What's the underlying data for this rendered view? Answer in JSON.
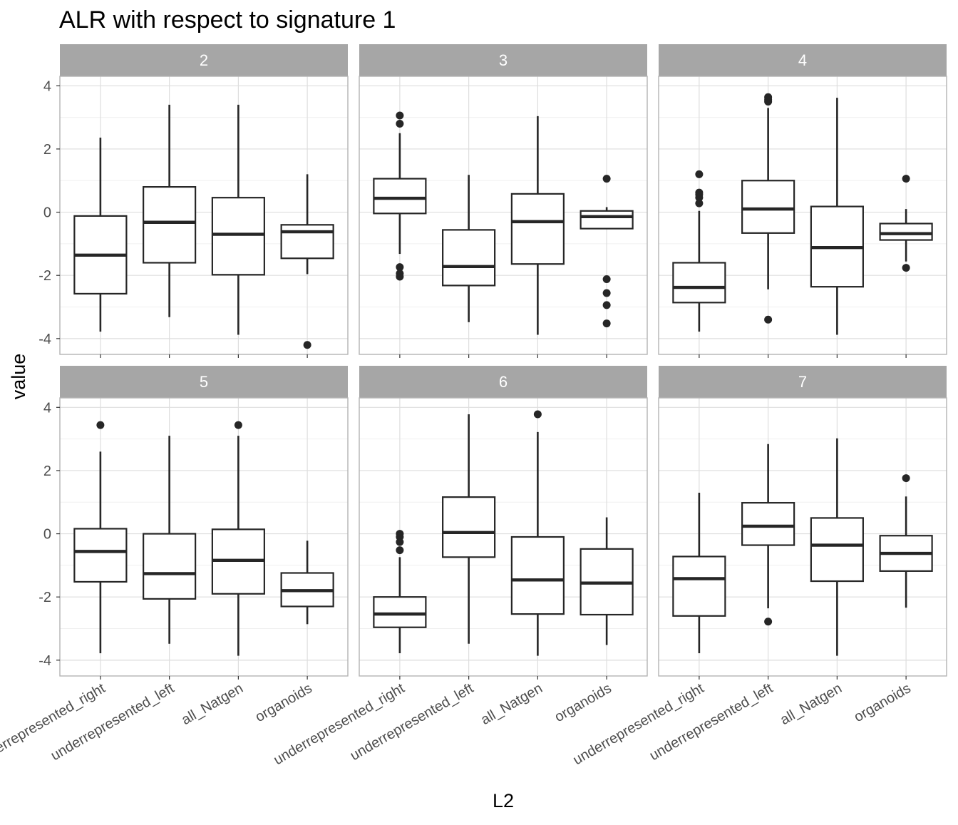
{
  "chart_data": {
    "type": "boxplot",
    "title": "ALR with respect to signature 1",
    "xlabel": "L2",
    "ylabel": "value",
    "ylim": [
      -4.5,
      4.3
    ],
    "y_ticks": [
      -4,
      -2,
      0,
      2,
      4
    ],
    "categories": [
      "underrepresented_right",
      "underrepresented_left",
      "all_Natgen",
      "organoids"
    ],
    "layout": {
      "rows": 2,
      "cols": 3
    },
    "grid": true,
    "facets": [
      {
        "label": "2",
        "boxes": [
          {
            "category": "underrepresented_right",
            "whisker_low": -3.78,
            "q1": -2.58,
            "median": -1.36,
            "q3": -0.12,
            "whisker_high": 2.36,
            "outliers": []
          },
          {
            "category": "underrepresented_left",
            "whisker_low": -3.32,
            "q1": -1.6,
            "median": -0.32,
            "q3": 0.8,
            "whisker_high": 3.4,
            "outliers": []
          },
          {
            "category": "all_Natgen",
            "whisker_low": -3.88,
            "q1": -1.98,
            "median": -0.7,
            "q3": 0.46,
            "whisker_high": 3.4,
            "outliers": []
          },
          {
            "category": "organoids",
            "whisker_low": -1.96,
            "q1": -1.46,
            "median": -0.62,
            "q3": -0.4,
            "whisker_high": 1.2,
            "outliers": [
              -4.2
            ]
          }
        ]
      },
      {
        "label": "3",
        "boxes": [
          {
            "category": "underrepresented_right",
            "whisker_low": -1.32,
            "q1": -0.04,
            "median": 0.44,
            "q3": 1.06,
            "whisker_high": 2.5,
            "outliers": [
              3.06,
              2.8,
              -1.74,
              -1.94,
              -2.04
            ]
          },
          {
            "category": "underrepresented_left",
            "whisker_low": -3.48,
            "q1": -2.32,
            "median": -1.72,
            "q3": -0.56,
            "whisker_high": 1.18,
            "outliers": []
          },
          {
            "category": "all_Natgen",
            "whisker_low": -3.88,
            "q1": -1.64,
            "median": -0.3,
            "q3": 0.58,
            "whisker_high": 3.04,
            "outliers": []
          },
          {
            "category": "organoids",
            "whisker_low": -0.52,
            "q1": -0.52,
            "median": -0.14,
            "q3": 0.04,
            "whisker_high": 0.16,
            "outliers": [
              1.06,
              -2.12,
              -2.56,
              -2.94,
              -3.52
            ]
          }
        ]
      },
      {
        "label": "4",
        "boxes": [
          {
            "category": "underrepresented_right",
            "whisker_low": -3.78,
            "q1": -2.86,
            "median": -2.38,
            "q3": -1.6,
            "whisker_high": 0.04,
            "outliers": [
              1.2,
              0.62,
              0.56,
              0.46,
              0.28
            ]
          },
          {
            "category": "underrepresented_left",
            "whisker_low": -2.44,
            "q1": -0.66,
            "median": 0.1,
            "q3": 1.0,
            "whisker_high": 3.3,
            "outliers": [
              3.64,
              3.56,
              3.5,
              -3.4
            ]
          },
          {
            "category": "all_Natgen",
            "whisker_low": -3.88,
            "q1": -2.36,
            "median": -1.12,
            "q3": 0.18,
            "whisker_high": 3.62,
            "outliers": []
          },
          {
            "category": "organoids",
            "whisker_low": -1.56,
            "q1": -0.88,
            "median": -0.68,
            "q3": -0.36,
            "whisker_high": 0.1,
            "outliers": [
              1.06,
              -1.76
            ]
          }
        ]
      },
      {
        "label": "5",
        "boxes": [
          {
            "category": "underrepresented_right",
            "whisker_low": -3.78,
            "q1": -1.52,
            "median": -0.56,
            "q3": 0.16,
            "whisker_high": 2.6,
            "outliers": [
              3.44
            ]
          },
          {
            "category": "underrepresented_left",
            "whisker_low": -3.48,
            "q1": -2.06,
            "median": -1.26,
            "q3": 0.0,
            "whisker_high": 3.1,
            "outliers": []
          },
          {
            "category": "all_Natgen",
            "whisker_low": -3.86,
            "q1": -1.9,
            "median": -0.84,
            "q3": 0.14,
            "whisker_high": 3.1,
            "outliers": [
              3.44
            ]
          },
          {
            "category": "organoids",
            "whisker_low": -2.86,
            "q1": -2.3,
            "median": -1.8,
            "q3": -1.24,
            "whisker_high": -0.22,
            "outliers": []
          }
        ]
      },
      {
        "label": "6",
        "boxes": [
          {
            "category": "underrepresented_right",
            "whisker_low": -3.78,
            "q1": -2.96,
            "median": -2.54,
            "q3": -2.0,
            "whisker_high": -0.74,
            "outliers": [
              0.0,
              -0.1,
              -0.26,
              -0.52
            ]
          },
          {
            "category": "underrepresented_left",
            "whisker_low": -3.48,
            "q1": -0.74,
            "median": 0.04,
            "q3": 1.16,
            "whisker_high": 3.78,
            "outliers": []
          },
          {
            "category": "all_Natgen",
            "whisker_low": -3.86,
            "q1": -2.54,
            "median": -1.46,
            "q3": -0.1,
            "whisker_high": 3.22,
            "outliers": [
              3.78
            ]
          },
          {
            "category": "organoids",
            "whisker_low": -3.52,
            "q1": -2.56,
            "median": -1.56,
            "q3": -0.48,
            "whisker_high": 0.52,
            "outliers": []
          }
        ]
      },
      {
        "label": "7",
        "boxes": [
          {
            "category": "underrepresented_right",
            "whisker_low": -3.78,
            "q1": -2.6,
            "median": -1.42,
            "q3": -0.72,
            "whisker_high": 1.3,
            "outliers": []
          },
          {
            "category": "underrepresented_left",
            "whisker_low": -2.36,
            "q1": -0.36,
            "median": 0.24,
            "q3": 0.98,
            "whisker_high": 2.84,
            "outliers": [
              -2.78
            ]
          },
          {
            "category": "all_Natgen",
            "whisker_low": -3.86,
            "q1": -1.5,
            "median": -0.36,
            "q3": 0.5,
            "whisker_high": 3.02,
            "outliers": []
          },
          {
            "category": "organoids",
            "whisker_low": -2.34,
            "q1": -1.18,
            "median": -0.62,
            "q3": -0.06,
            "whisker_high": 1.18,
            "outliers": [
              1.76
            ]
          }
        ]
      }
    ],
    "colors": {
      "strip_background": "#a6a6a6",
      "strip_text": "#ffffff",
      "panel_border": "#b3b3b3",
      "major_grid": "#dedede",
      "minor_grid": "#f0f0f0",
      "box_line": "#262626",
      "tick_text": "#4d4d4d"
    }
  }
}
